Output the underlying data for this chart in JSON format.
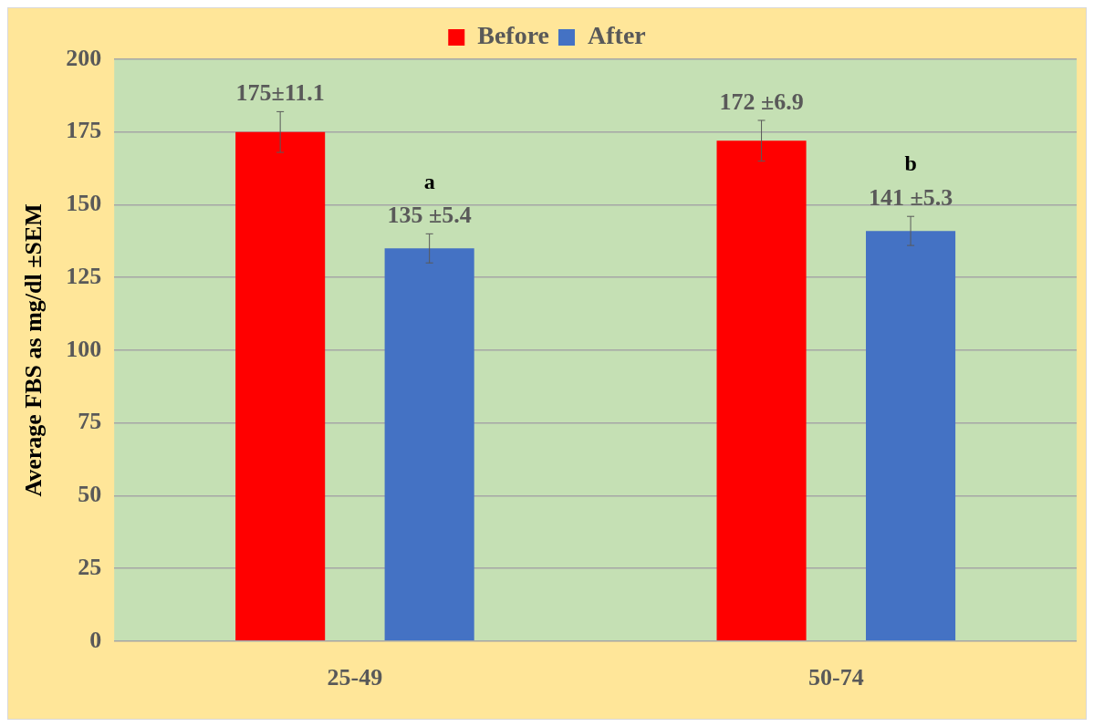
{
  "chart_data": {
    "type": "bar",
    "ylabel": "Average FBS as mg/dl ±SEM",
    "categories": [
      "25-49",
      "50-74"
    ],
    "series": [
      {
        "name": "Before",
        "color": "#ff0000",
        "values": [
          175,
          172
        ],
        "errors": [
          7,
          7
        ],
        "value_labels": [
          "175±11.1",
          "172 ±6.9"
        ]
      },
      {
        "name": "After",
        "color": "#4472c4",
        "values": [
          135,
          141
        ],
        "errors": [
          5,
          5
        ],
        "value_labels": [
          "135 ±5.4",
          "141 ±5.3"
        ]
      }
    ],
    "annotations": [
      "a",
      "b"
    ],
    "ylim": [
      0,
      200
    ],
    "yticks": [
      0,
      25,
      50,
      75,
      100,
      125,
      150,
      175,
      200
    ],
    "grid": "y",
    "legend": "top"
  }
}
